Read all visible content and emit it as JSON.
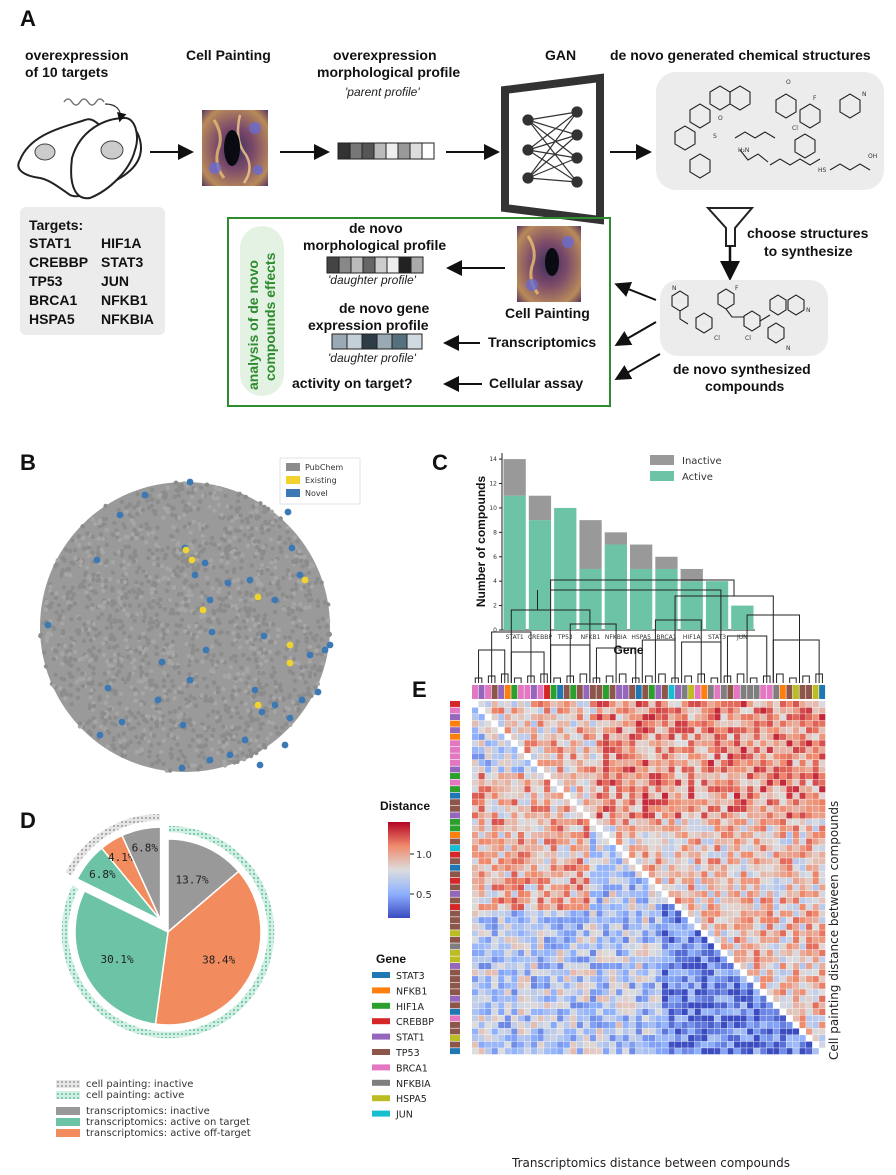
{
  "panel_labels": {
    "a": "A",
    "b": "B",
    "c": "C",
    "d": "D",
    "e": "E"
  },
  "panel_a": {
    "overexpression_line1": "overexpression",
    "overexpression_line2": "of 10 targets",
    "cell_painting_title": "Cell Painting",
    "profile_line1": "overexpression",
    "profile_line2": "morphological profile",
    "parent_profile": "'parent profile'",
    "gan_title": "GAN",
    "generated_title": "de novo generated chemical structures",
    "targets_title": "Targets:",
    "targets": [
      "STAT1",
      "HIF1A",
      "CREBBP",
      "STAT3",
      "TP53",
      "JUN",
      "BRCA1",
      "NFKB1",
      "HSPA5",
      "NFKBIA"
    ],
    "choose_line1": "choose structures",
    "choose_line2": "to synthesize",
    "analysis_line1": "analysis of de novo",
    "analysis_line2": "compounds effects",
    "denovo_morph_line1": "de novo",
    "denovo_morph_line2": "morphological profile",
    "daughter_profile_1": "'daughter profile'",
    "denovo_gene_line1": "de novo gene",
    "denovo_gene_line2": "expression profile",
    "daughter_profile_2": "'daughter profile'",
    "activity_on_target": "activity on target?",
    "cell_painting_2": "Cell Painting",
    "transcriptomics": "Transcriptomics",
    "cellular_assay": "Cellular assay",
    "synth_line1": "de novo synthesized",
    "synth_line2": "compounds",
    "parent_profile_colors": [
      "#333333",
      "#777777",
      "#555555",
      "#bbbbbb",
      "#eeeeee",
      "#999999",
      "#dddddd",
      "#ffffff"
    ],
    "daughter1_colors": [
      "#444444",
      "#888888",
      "#bbbbbb",
      "#666666",
      "#cccccc",
      "#eeeeee",
      "#222222",
      "#aaaaaa"
    ],
    "daughter2_colors": [
      "#99aab6",
      "#c4d0d8",
      "#2e3c46",
      "#9aaab4",
      "#57707e",
      "#d0dae0"
    ],
    "box_border_color": "#2e8b2e",
    "analysis_fill_color": "#e4f2e4",
    "analysis_text_color": "#2e8b2e"
  },
  "panel_b": {
    "legend": [
      {
        "label": "PubChem",
        "color": "#8c8c8c"
      },
      {
        "label": "Existing",
        "color": "#f2d32e"
      },
      {
        "label": "Novel",
        "color": "#3c78b4"
      }
    ]
  },
  "chart_data": [
    {
      "type": "bar",
      "id": "panel_c",
      "stacked": true,
      "categories": [
        "STAT1",
        "CREBBP",
        "TP53",
        "NFKB1",
        "NFKBIA",
        "HSPA5",
        "BRCA1",
        "HIF1A",
        "STAT3",
        "JUN"
      ],
      "series": [
        {
          "name": "Active",
          "values": [
            11,
            9,
            10,
            5,
            7,
            5,
            5,
            4,
            4,
            2
          ],
          "color": "#6cc3a6"
        },
        {
          "name": "Inactive",
          "values": [
            3,
            2,
            0,
            4,
            1,
            2,
            1,
            1,
            0,
            0
          ],
          "color": "#999999"
        }
      ],
      "legend_order": [
        "Inactive",
        "Active"
      ],
      "xlabel": "Gene",
      "ylabel": "Number of compounds",
      "ylim": [
        0,
        14.5
      ],
      "yticks": [
        0,
        2,
        4,
        6,
        8,
        10,
        12,
        14
      ],
      "legend_position": "top-right"
    },
    {
      "type": "pie",
      "id": "panel_d",
      "outer_ring": [
        {
          "label": "cell painting: inactive",
          "value": 17.7,
          "color": "#aaaaaa",
          "pattern": "dots"
        },
        {
          "label": "cell painting: active",
          "value": 82.3,
          "color": "#7fcfb0",
          "pattern": "dots"
        }
      ],
      "slices": [
        {
          "label": "transcriptomics: inactive",
          "value": 13.7,
          "text": "13.7%",
          "color": "#999999",
          "ring": "active"
        },
        {
          "label": "transcriptomics: active off-target",
          "value": 38.4,
          "text": "38.4%",
          "color": "#f28c5e",
          "ring": "active"
        },
        {
          "label": "transcriptomics: active on target",
          "value": 30.1,
          "text": "30.1%",
          "color": "#6cc3a6",
          "ring": "active"
        },
        {
          "label": "transcriptomics: active on target",
          "value": 6.8,
          "text": "6.8%",
          "color": "#6cc3a6",
          "ring": "inactive"
        },
        {
          "label": "transcriptomics: active off-target",
          "value": 4.1,
          "text": "4.1%",
          "color": "#f28c5e",
          "ring": "inactive"
        },
        {
          "label": "transcriptomics: inactive",
          "value": 6.8,
          "text": "6.8%",
          "color": "#999999",
          "ring": "inactive"
        }
      ],
      "legend_ring": [
        "cell painting: inactive",
        "cell painting: active"
      ],
      "legend_trans": [
        {
          "label": "transcriptomics: inactive",
          "color": "#999999"
        },
        {
          "label": "transcriptomics: active on target",
          "color": "#6cc3a6"
        },
        {
          "label": "transcriptomics: active off-target",
          "color": "#f28c5e"
        }
      ]
    },
    {
      "type": "heatmap",
      "id": "panel_e",
      "n": 54,
      "colorbar_title": "Distance",
      "colorbar_ticks": [
        1.0,
        0.5
      ],
      "colorbar_tick_labels": [
        "1.0",
        "0.5"
      ],
      "value_range": [
        0.2,
        1.4
      ],
      "gene_legend_title": "Gene",
      "genes": [
        {
          "name": "STAT3",
          "color": "#1f77b4"
        },
        {
          "name": "NFKB1",
          "color": "#ff7f0e"
        },
        {
          "name": "HIF1A",
          "color": "#2ca02c"
        },
        {
          "name": "CREBBP",
          "color": "#d62728"
        },
        {
          "name": "STAT1",
          "color": "#9467bd"
        },
        {
          "name": "TP53",
          "color": "#8c564b"
        },
        {
          "name": "BRCA1",
          "color": "#e377c2"
        },
        {
          "name": "NFKBIA",
          "color": "#7f7f7f"
        },
        {
          "name": "HSPA5",
          "color": "#bcbd22"
        },
        {
          "name": "JUN",
          "color": "#17becf"
        }
      ],
      "top_labels": [
        "BRCA1",
        "STAT1",
        "BRCA1",
        "TP53",
        "STAT1",
        "NFKB1",
        "HIF1A",
        "BRCA1",
        "BRCA1",
        "STAT1",
        "BRCA1",
        "CREBBP",
        "HIF1A",
        "STAT3",
        "TP53",
        "HIF1A",
        "TP53",
        "STAT1",
        "TP53",
        "TP53",
        "HIF1A",
        "TP53",
        "STAT1",
        "STAT1",
        "TP53",
        "STAT3",
        "TP53",
        "HIF1A",
        "STAT1",
        "TP53",
        "JUN",
        "STAT1",
        "NFKBIA",
        "HSPA5",
        "BRCA1",
        "NFKB1",
        "NFKBIA",
        "BRCA1",
        "NFKBIA",
        "TP53",
        "BRCA1",
        "NFKBIA",
        "NFKBIA",
        "NFKBIA",
        "BRCA1",
        "BRCA1",
        "NFKBIA",
        "NFKB1",
        "TP53",
        "HSPA5",
        "TP53",
        "TP53",
        "HSPA5",
        "STAT3"
      ],
      "left_labels": [
        "CREBBP",
        "BRCA1",
        "STAT1",
        "NFKB1",
        "STAT1",
        "NFKB1",
        "BRCA1",
        "BRCA1",
        "BRCA1",
        "BRCA1",
        "STAT1",
        "HIF1A",
        "BRCA1",
        "HIF1A",
        "STAT3",
        "TP53",
        "TP53",
        "STAT1",
        "HIF1A",
        "HIF1A",
        "NFKB1",
        "TP53",
        "JUN",
        "CREBBP",
        "TP53",
        "STAT3",
        "TP53",
        "CREBBP",
        "TP53",
        "STAT1",
        "TP53",
        "CREBBP",
        "TP53",
        "TP53",
        "TP53",
        "HSPA5",
        "TP53",
        "NFKBIA",
        "HSPA5",
        "HSPA5",
        "STAT1",
        "TP53",
        "TP53",
        "TP53",
        "TP53",
        "STAT1",
        "TP53",
        "STAT3",
        "BRCA1",
        "TP53",
        "TP53",
        "HSPA5",
        "TP53",
        "STAT3"
      ],
      "xlabel": "Transcriptomics distance between compounds",
      "ylabel": "Cell painting distance between compounds"
    }
  ]
}
